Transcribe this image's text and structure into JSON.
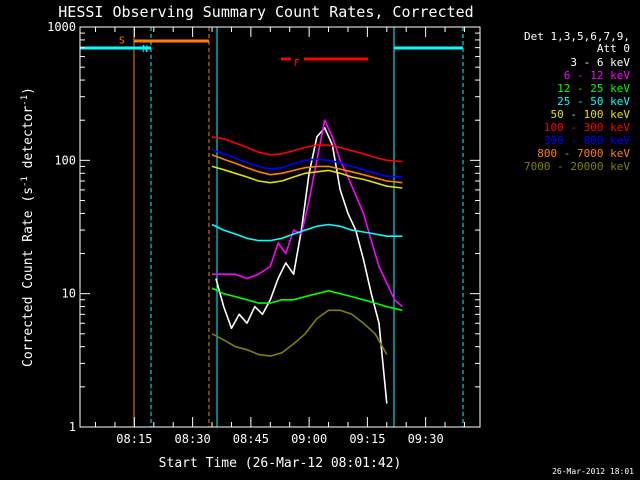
{
  "chart_data": {
    "type": "line",
    "title": "HESSI Observing Summary Count Rates, Corrected",
    "xlabel": "Start Time (26-Mar-12 08:01:42)",
    "ylabel_main": "Corrected Count Rate (s",
    "ylabel_sup1": "-1",
    "ylabel_mid": " detector",
    "ylabel_sup2": "-1",
    "ylabel_end": ")",
    "yscale": "log",
    "xlim": [
      "08:01",
      "09:44"
    ],
    "ylim": [
      1,
      1000
    ],
    "x_ticks": [
      "08:15",
      "08:30",
      "08:45",
      "09:00",
      "09:15",
      "09:30"
    ],
    "y_ticks": [
      "1",
      "10",
      "100",
      "1000"
    ],
    "legend_header": [
      "Det 1,3,5,6,7,9,",
      "Att 0"
    ],
    "legend_position": "right",
    "timestamp": "26-Mar-2012 18:01",
    "series": [
      {
        "name": "3 - 6 keV",
        "color": "#ffffff",
        "x": [
          "08:36",
          "08:38",
          "08:40",
          "08:42",
          "08:44",
          "08:46",
          "08:48",
          "08:50",
          "08:52",
          "08:54",
          "08:56",
          "08:58",
          "09:00",
          "09:02",
          "09:04",
          "09:06",
          "09:08",
          "09:10",
          "09:12",
          "09:14",
          "09:16",
          "09:18",
          "09:20"
        ],
        "values": [
          13,
          8,
          5.5,
          7,
          6,
          8,
          7,
          9,
          13,
          17,
          14,
          30,
          80,
          150,
          175,
          130,
          60,
          40,
          30,
          18,
          10,
          6,
          1.5
        ]
      },
      {
        "name": "6 - 12 keV",
        "color": "#ff00ff",
        "x": [
          "08:35",
          "08:38",
          "08:41",
          "08:44",
          "08:47",
          "08:50",
          "08:52",
          "08:54",
          "08:56",
          "08:58",
          "09:00",
          "09:02",
          "09:04",
          "09:06",
          "09:08",
          "09:10",
          "09:12",
          "09:14",
          "09:16",
          "09:18",
          "09:20",
          "09:22",
          "09:24"
        ],
        "values": [
          14,
          14,
          14,
          13,
          14,
          16,
          24,
          20,
          30,
          28,
          50,
          100,
          200,
          150,
          100,
          75,
          55,
          40,
          25,
          16,
          12,
          9,
          8
        ]
      },
      {
        "name": "12 - 25 keV",
        "color": "#00ff00",
        "x": [
          "08:35",
          "08:38",
          "08:41",
          "08:44",
          "08:47",
          "08:50",
          "08:53",
          "08:56",
          "08:59",
          "09:02",
          "09:05",
          "09:08",
          "09:11",
          "09:14",
          "09:17",
          "09:20",
          "09:24"
        ],
        "values": [
          11,
          10,
          9.5,
          9,
          8.5,
          8.5,
          9,
          9,
          9.5,
          10,
          10.5,
          10,
          9.5,
          9,
          8.5,
          8,
          7.5
        ]
      },
      {
        "name": "25 - 50 keV",
        "color": "#00ffff",
        "x": [
          "08:35",
          "08:38",
          "08:41",
          "08:44",
          "08:47",
          "08:50",
          "08:53",
          "08:56",
          "08:59",
          "09:02",
          "09:05",
          "09:08",
          "09:11",
          "09:14",
          "09:17",
          "09:20",
          "09:24"
        ],
        "values": [
          33,
          30,
          28,
          26,
          25,
          25,
          26,
          28,
          30,
          32,
          33,
          32,
          30,
          29,
          28,
          27,
          27
        ]
      },
      {
        "name": "50 - 100 keV",
        "color": "#e0e000",
        "x": [
          "08:35",
          "08:38",
          "08:41",
          "08:44",
          "08:47",
          "08:50",
          "08:53",
          "08:56",
          "08:59",
          "09:02",
          "09:05",
          "09:08",
          "09:11",
          "09:14",
          "09:17",
          "09:20",
          "09:24"
        ],
        "values": [
          90,
          85,
          80,
          75,
          70,
          68,
          70,
          75,
          80,
          82,
          84,
          80,
          75,
          72,
          68,
          64,
          62
        ]
      },
      {
        "name": "100 - 300 keV",
        "color": "#ff0000",
        "x": [
          "08:35",
          "08:38",
          "08:41",
          "08:44",
          "08:47",
          "08:50",
          "08:53",
          "08:56",
          "08:59",
          "09:02",
          "09:05",
          "09:08",
          "09:11",
          "09:14",
          "09:17",
          "09:20",
          "09:24"
        ],
        "values": [
          150,
          145,
          135,
          125,
          115,
          110,
          112,
          118,
          125,
          130,
          130,
          125,
          118,
          112,
          105,
          100,
          98
        ]
      },
      {
        "name": "300 - 800 keV",
        "color": "#0000ff",
        "x": [
          "08:35",
          "08:38",
          "08:41",
          "08:44",
          "08:47",
          "08:50",
          "08:53",
          "08:56",
          "08:59",
          "09:02",
          "09:05",
          "09:08",
          "09:11",
          "09:14",
          "09:17",
          "09:20",
          "09:24"
        ],
        "values": [
          120,
          112,
          104,
          96,
          90,
          86,
          88,
          94,
          100,
          102,
          100,
          96,
          90,
          85,
          80,
          76,
          75
        ]
      },
      {
        "name": "800 - 7000 keV",
        "color": "#ff8000",
        "x": [
          "08:35",
          "08:38",
          "08:41",
          "08:44",
          "08:47",
          "08:50",
          "08:53",
          "08:56",
          "08:59",
          "09:02",
          "09:05",
          "09:08",
          "09:11",
          "09:14",
          "09:17",
          "09:20",
          "09:24"
        ],
        "values": [
          110,
          102,
          95,
          88,
          82,
          78,
          80,
          84,
          88,
          90,
          90,
          86,
          82,
          78,
          74,
          70,
          68
        ]
      },
      {
        "name": "7000 - 20000 keV",
        "color": "#808000",
        "x": [
          "08:35",
          "08:38",
          "08:41",
          "08:44",
          "08:47",
          "08:50",
          "08:53",
          "08:56",
          "08:59",
          "09:02",
          "09:05",
          "09:08",
          "09:11",
          "09:14",
          "09:17",
          "09:20"
        ],
        "values": [
          5,
          4.5,
          4,
          3.8,
          3.5,
          3.4,
          3.6,
          4.2,
          5,
          6.5,
          7.5,
          7.5,
          7,
          6,
          5,
          3.5
        ]
      }
    ],
    "annotations": [
      {
        "label": "S",
        "color": "#ff8000",
        "x": "08:11",
        "y": 750
      },
      {
        "label": "N",
        "color": "#00ffff",
        "x": "08:17",
        "y": 650
      },
      {
        "label": "F",
        "color": "#ff0000",
        "x": "08:56",
        "y": 510
      }
    ]
  }
}
